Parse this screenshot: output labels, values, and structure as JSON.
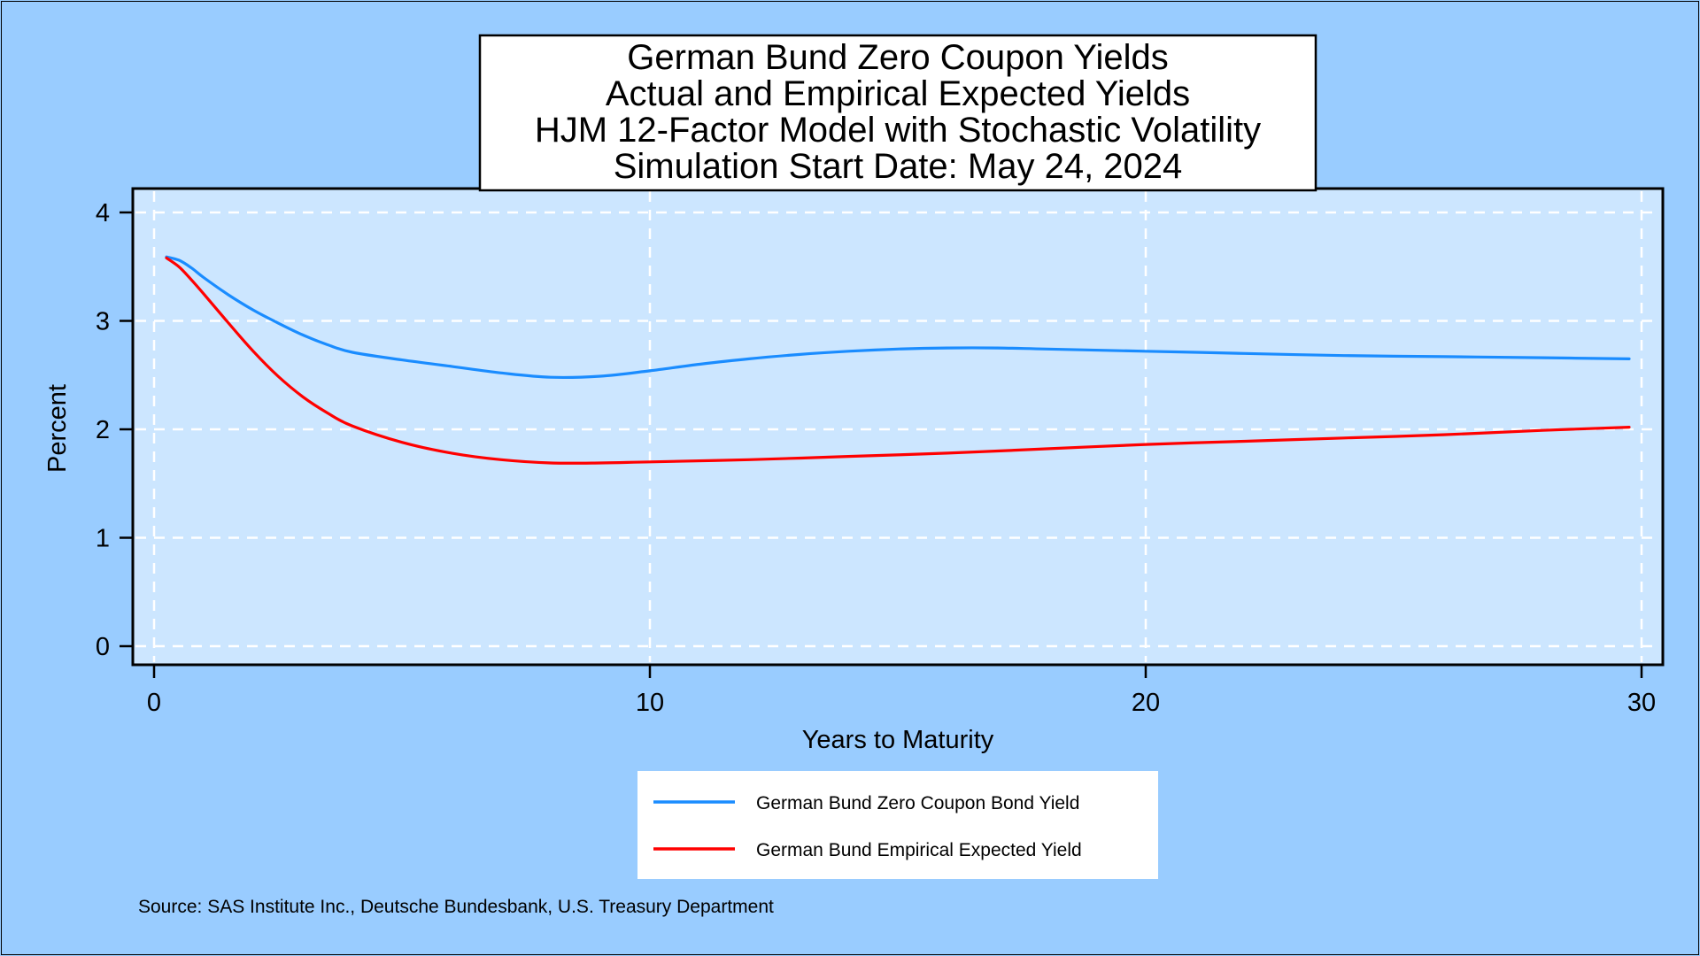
{
  "chart_data": {
    "type": "line",
    "title_lines": [
      "German Bund Zero Coupon Yields",
      "Actual and Empirical Expected Yields",
      "HJM 12-Factor Model with Stochastic Volatility",
      "Simulation Start Date: May 24, 2024"
    ],
    "xlabel": "Years to Maturity",
    "ylabel": "Percent",
    "xlim": [
      0,
      30
    ],
    "ylim": [
      0,
      4
    ],
    "x_ticks": [
      "0",
      "10",
      "20",
      "30"
    ],
    "y_ticks": [
      "0",
      "1",
      "2",
      "3",
      "4"
    ],
    "grid": true,
    "legend_position": "bottom",
    "series": [
      {
        "name": "German Bund Zero Coupon Bond Yield",
        "color": "#1a8cff",
        "points": [
          [
            0.25,
            3.59
          ],
          [
            0.5,
            3.56
          ],
          [
            0.75,
            3.49
          ],
          [
            1,
            3.4
          ],
          [
            1.5,
            3.24
          ],
          [
            2,
            3.1
          ],
          [
            2.5,
            2.98
          ],
          [
            3,
            2.87
          ],
          [
            3.5,
            2.78
          ],
          [
            4,
            2.71
          ],
          [
            5,
            2.64
          ],
          [
            6,
            2.58
          ],
          [
            7,
            2.52
          ],
          [
            8,
            2.48
          ],
          [
            9,
            2.49
          ],
          [
            10,
            2.54
          ],
          [
            11,
            2.6
          ],
          [
            12,
            2.65
          ],
          [
            13,
            2.69
          ],
          [
            14,
            2.72
          ],
          [
            15,
            2.74
          ],
          [
            16,
            2.75
          ],
          [
            17,
            2.75
          ],
          [
            18,
            2.74
          ],
          [
            20,
            2.72
          ],
          [
            22,
            2.7
          ],
          [
            24,
            2.68
          ],
          [
            26,
            2.67
          ],
          [
            28,
            2.66
          ],
          [
            29.75,
            2.65
          ]
        ]
      },
      {
        "name": "German Bund Empirical Expected Yield",
        "color": "#ff0000",
        "points": [
          [
            0.25,
            3.58
          ],
          [
            0.5,
            3.5
          ],
          [
            0.75,
            3.38
          ],
          [
            1,
            3.25
          ],
          [
            1.5,
            2.98
          ],
          [
            2,
            2.72
          ],
          [
            2.5,
            2.49
          ],
          [
            3,
            2.3
          ],
          [
            3.5,
            2.15
          ],
          [
            4,
            2.03
          ],
          [
            5,
            1.88
          ],
          [
            6,
            1.78
          ],
          [
            7,
            1.72
          ],
          [
            8,
            1.69
          ],
          [
            9,
            1.69
          ],
          [
            10,
            1.7
          ],
          [
            12,
            1.72
          ],
          [
            14,
            1.75
          ],
          [
            16,
            1.78
          ],
          [
            18,
            1.82
          ],
          [
            20,
            1.86
          ],
          [
            22,
            1.89
          ],
          [
            24,
            1.92
          ],
          [
            26,
            1.95
          ],
          [
            28,
            1.99
          ],
          [
            29.75,
            2.02
          ]
        ]
      }
    ],
    "source": "Source: SAS Institute Inc., Deutsche Bundesbank, U.S. Treasury Department",
    "plot_background": "#cce6ff",
    "page_background": "#99ccff"
  }
}
